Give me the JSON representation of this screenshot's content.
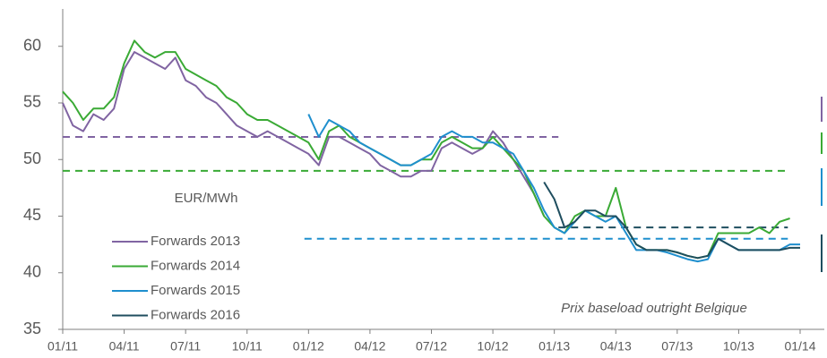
{
  "chart_data": {
    "type": "line",
    "y_label": "EUR/MWh",
    "annotation": "Prix baseload outright Belgique",
    "xlim": [
      0,
      36
    ],
    "xticks": [
      {
        "value": 0,
        "label": "01/11"
      },
      {
        "value": 3,
        "label": "04/11"
      },
      {
        "value": 6,
        "label": "07/11"
      },
      {
        "value": 9,
        "label": "10/11"
      },
      {
        "value": 12,
        "label": "01/12"
      },
      {
        "value": 15,
        "label": "04/12"
      },
      {
        "value": 18,
        "label": "07/12"
      },
      {
        "value": 21,
        "label": "10/12"
      },
      {
        "value": 24,
        "label": "01/13"
      },
      {
        "value": 27,
        "label": "04/13"
      },
      {
        "value": 30,
        "label": "07/13"
      },
      {
        "value": 33,
        "label": "10/13"
      },
      {
        "value": 36,
        "label": "01/14"
      }
    ],
    "ylim": [
      35,
      63.3
    ],
    "yticks": [
      35,
      40,
      45,
      50,
      55,
      60
    ],
    "grid": false,
    "legend": "lower left",
    "series": [
      {
        "name": "Forwards 2013",
        "color": "#8064a2",
        "x": [
          0,
          0.5,
          1,
          1.5,
          2,
          2.5,
          3,
          3.5,
          4,
          4.5,
          5,
          5.5,
          6,
          6.5,
          7,
          7.5,
          8,
          8.5,
          9,
          9.5,
          10,
          10.5,
          11,
          11.5,
          12,
          12.5,
          13,
          13.5,
          14,
          14.5,
          15,
          15.5,
          16,
          16.5,
          17,
          17.5,
          18,
          18.5,
          19,
          19.5,
          20,
          20.5,
          21,
          21.5,
          22,
          22.5,
          23,
          23.5
        ],
        "values": [
          55,
          53,
          52.5,
          54,
          53.5,
          54.5,
          58,
          59.5,
          59,
          58.5,
          58,
          59,
          57,
          56.5,
          55.5,
          55,
          54,
          53,
          52.5,
          52,
          52.5,
          52,
          51.5,
          51,
          50.5,
          49.5,
          52,
          52,
          51.5,
          51,
          50.5,
          49.5,
          49,
          48.5,
          48.5,
          49,
          49,
          51,
          51.5,
          51,
          50.5,
          51,
          52.5,
          51.5,
          50,
          48.5,
          47,
          45
        ]
      },
      {
        "name": "Forwards 2014",
        "color": "#3aaa35",
        "x": [
          0,
          0.5,
          1,
          1.5,
          2,
          2.5,
          3,
          3.5,
          4,
          4.5,
          5,
          5.5,
          6,
          6.5,
          7,
          7.5,
          8,
          8.5,
          9,
          9.5,
          10,
          10.5,
          11,
          11.5,
          12,
          12.5,
          13,
          13.5,
          14,
          14.5,
          15,
          15.5,
          16,
          16.5,
          17,
          17.5,
          18,
          18.5,
          19,
          19.5,
          20,
          20.5,
          21,
          21.5,
          22,
          22.5,
          23,
          23.5,
          24,
          24.5,
          25,
          25.5,
          26,
          26.5,
          27,
          27.5,
          28,
          28.5,
          29,
          29.5,
          30,
          30.5,
          31,
          31.5,
          32,
          32.5,
          33,
          33.5,
          34,
          34.5,
          35,
          35.5
        ],
        "values": [
          56,
          55,
          53.5,
          54.5,
          54.5,
          55.5,
          58.5,
          60.5,
          59.5,
          59,
          59.5,
          59.5,
          58,
          57.5,
          57,
          56.5,
          55.5,
          55,
          54,
          53.5,
          53.5,
          53,
          52.5,
          52,
          51.5,
          50,
          52.5,
          53,
          52,
          51.5,
          51,
          50.5,
          50,
          49.5,
          49.5,
          50,
          50,
          51.5,
          52,
          51.5,
          51,
          51,
          52,
          51,
          50,
          49,
          47,
          45,
          44,
          43.5,
          45,
          45.5,
          45,
          45,
          47.5,
          44,
          42.5,
          42,
          42,
          42,
          41.8,
          41.5,
          41.3,
          41.5,
          43.5,
          43.5,
          43.5,
          43.5,
          44,
          43.5,
          44.5,
          44.8
        ]
      },
      {
        "name": "Forwards 2015",
        "color": "#1f8fce",
        "x": [
          12,
          12.5,
          13,
          13.5,
          14,
          14.5,
          15,
          15.5,
          16,
          16.5,
          17,
          17.5,
          18,
          18.5,
          19,
          19.5,
          20,
          20.5,
          21,
          21.5,
          22,
          22.5,
          23,
          23.5,
          24,
          24.5,
          25,
          25.5,
          26,
          26.5,
          27,
          27.5,
          28,
          28.5,
          29,
          29.5,
          30,
          30.5,
          31,
          31.5,
          32,
          32.5,
          33,
          33.5,
          34,
          34.5,
          35,
          35.5,
          36
        ],
        "values": [
          54,
          52,
          53.5,
          53,
          52.5,
          51.5,
          51,
          50.5,
          50,
          49.5,
          49.5,
          50,
          50.5,
          52,
          52.5,
          52,
          52,
          51.5,
          51.5,
          51,
          50.5,
          49,
          47.5,
          45.5,
          44,
          43.5,
          44.5,
          45.5,
          45,
          44.5,
          45,
          43.5,
          42,
          42,
          42,
          41.8,
          41.5,
          41.2,
          41,
          41.2,
          43,
          42.5,
          42,
          42,
          42,
          42,
          42,
          42.5,
          42.5
        ]
      },
      {
        "name": "Forwards 2016",
        "color": "#1f4e5f",
        "x": [
          23.5,
          24,
          24.5,
          25,
          25.5,
          26,
          26.5,
          27,
          27.5,
          28,
          28.5,
          29,
          29.5,
          30,
          30.5,
          31,
          31.5,
          32,
          32.5,
          33,
          33.5,
          34,
          34.5,
          35,
          35.5,
          36
        ],
        "values": [
          48,
          46.5,
          44,
          44.5,
          45.5,
          45.5,
          45,
          45,
          44,
          42.5,
          42,
          42,
          42,
          41.8,
          41.5,
          41.3,
          41.5,
          43,
          42.5,
          42,
          42,
          42,
          42,
          42,
          42.2,
          42.2
        ]
      }
    ],
    "reference_lines": [
      {
        "color": "#8064a2",
        "value": 52,
        "x_range": [
          0,
          24.2
        ]
      },
      {
        "color": "#3aaa35",
        "value": 49,
        "x_range": [
          0,
          35.4
        ]
      },
      {
        "color": "#1f8fce",
        "value": 43,
        "x_range": [
          11.8,
          35.4
        ]
      },
      {
        "color": "#1f4e5f",
        "value": 44,
        "x_range": [
          24.2,
          35.4
        ]
      }
    ]
  }
}
